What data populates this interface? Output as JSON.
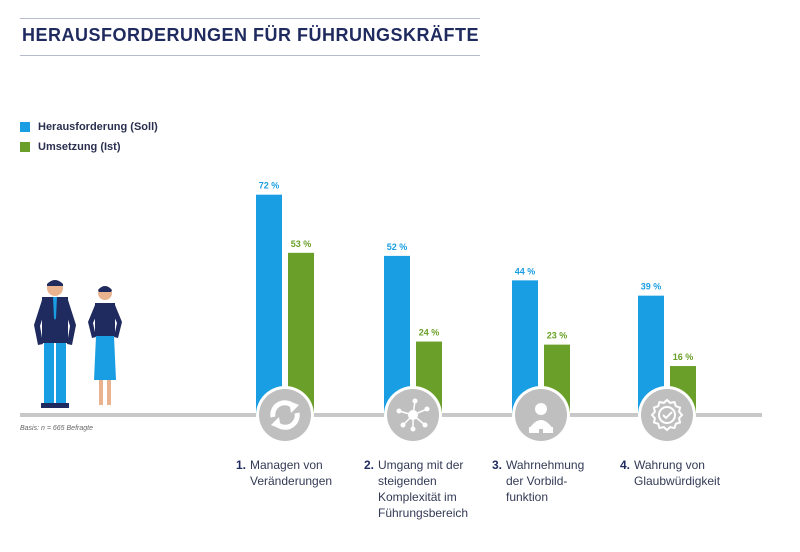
{
  "title": "HERAUSFORDERUNGEN FÜR FÜHRUNGSKRÄFTE",
  "basis": "Basis: n = 665 Befragte",
  "colors": {
    "soll": "#1a9ee3",
    "ist": "#6aa02a",
    "axis": "#c8c8c8",
    "circle": "#bfbfbf"
  },
  "chart_data": {
    "type": "bar",
    "title": "HERAUSFORDERUNGEN FÜR FÜHRUNGSKRÄFTE",
    "ylim": [
      0,
      80
    ],
    "categories": [
      {
        "num": "1.",
        "label": "Managen von Veränderungen",
        "icon": "refresh-icon"
      },
      {
        "num": "2.",
        "label": "Umgang mit der steigenden Komplexität im Führungsbereich",
        "icon": "network-icon"
      },
      {
        "num": "3.",
        "label": "Wahrnehmung der Vorbild-funktion",
        "icon": "person-icon"
      },
      {
        "num": "4.",
        "label": "Wahrung von Glaubwürdigkeit",
        "icon": "badge-check-icon"
      }
    ],
    "series": [
      {
        "name": "Herausforderung (Soll)",
        "values": [
          72,
          52,
          44,
          39
        ],
        "labels": [
          "72 %",
          "52 %",
          "44 %",
          "39 %"
        ]
      },
      {
        "name": "Umsetzung (Ist)",
        "values": [
          53,
          24,
          23,
          16
        ],
        "labels": [
          "53 %",
          "24 %",
          "23 %",
          "16 %"
        ]
      }
    ]
  }
}
